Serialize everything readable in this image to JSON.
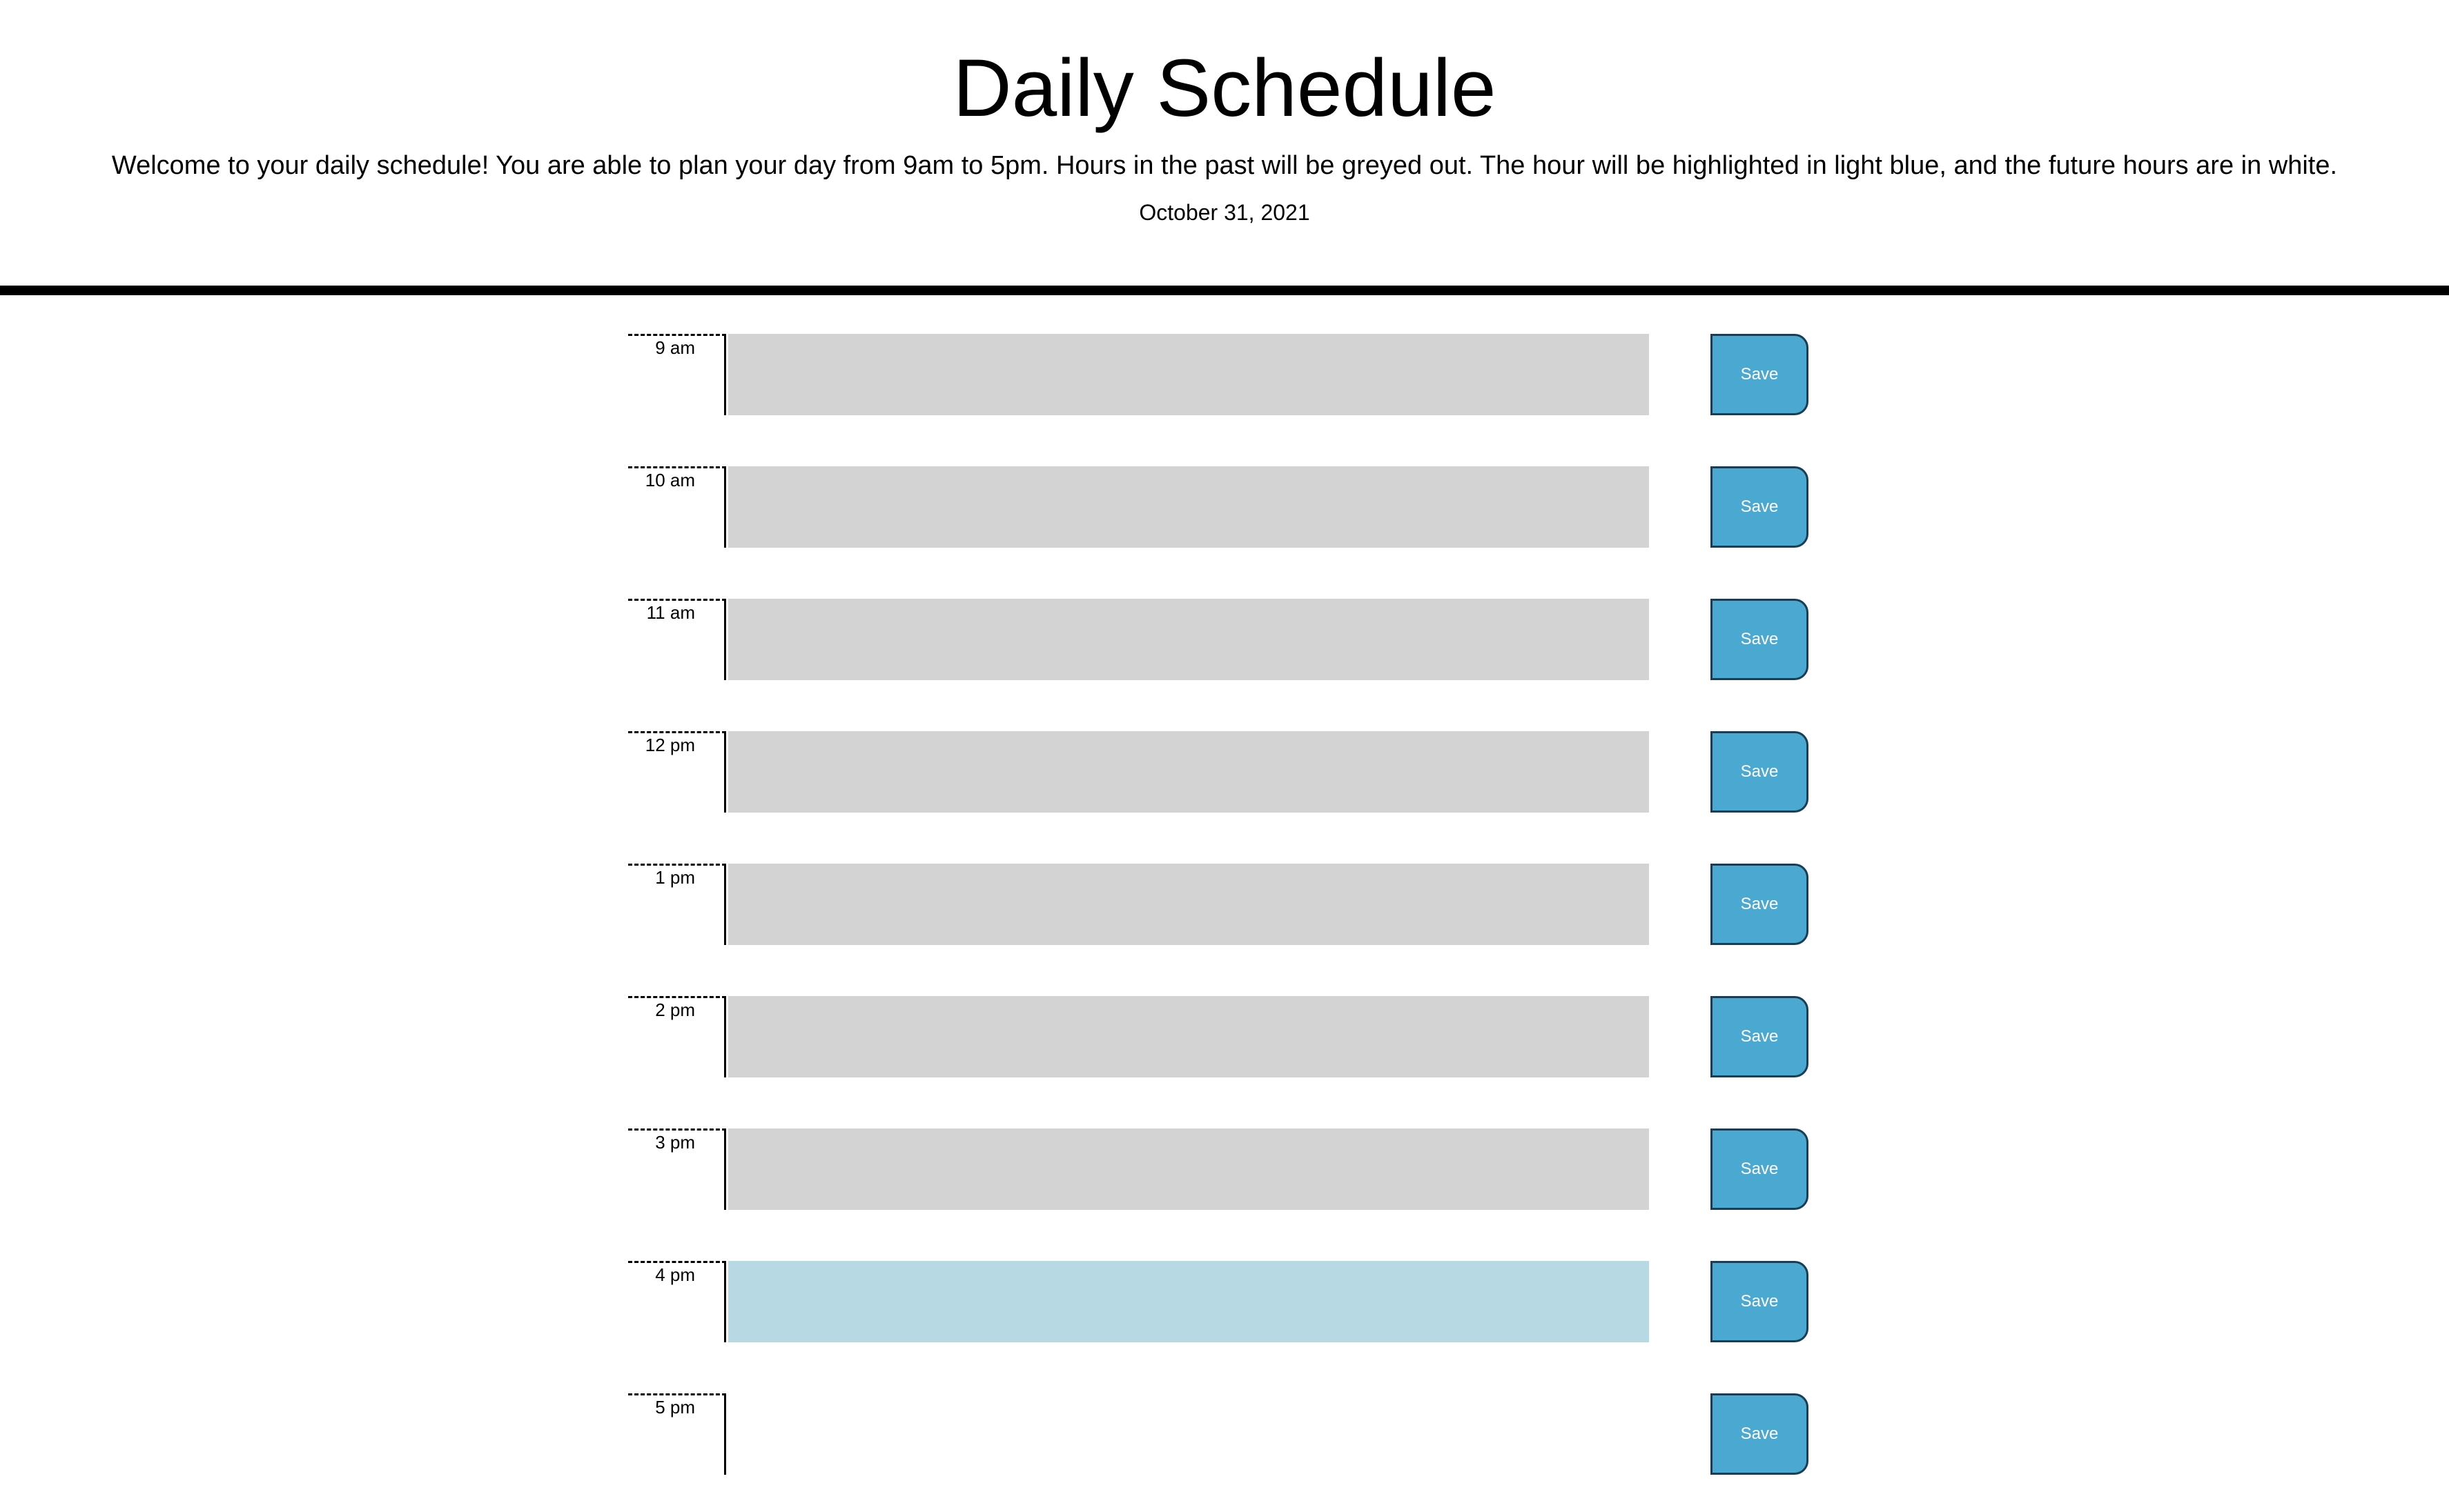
{
  "header": {
    "title": "Daily Schedule",
    "lead": "Welcome to your daily schedule! You are able to plan your day from 9am to 5pm. Hours in the past will be greyed out. The hour will be highlighted in light blue, and the future hours are in white.",
    "current_day": "October 31, 2021"
  },
  "colors": {
    "past": "#d3d3d3",
    "present": "#b6d9e4",
    "future": "#ffffff",
    "save_button": "#4aa8d1"
  },
  "time_blocks": [
    {
      "hour": "9 am",
      "state": "past",
      "text": "",
      "save_label": "Save"
    },
    {
      "hour": "10 am",
      "state": "past",
      "text": "",
      "save_label": "Save"
    },
    {
      "hour": "11 am",
      "state": "past",
      "text": "",
      "save_label": "Save"
    },
    {
      "hour": "12 pm",
      "state": "past",
      "text": "",
      "save_label": "Save"
    },
    {
      "hour": "1 pm",
      "state": "past",
      "text": "",
      "save_label": "Save"
    },
    {
      "hour": "2 pm",
      "state": "past",
      "text": "",
      "save_label": "Save"
    },
    {
      "hour": "3 pm",
      "state": "past",
      "text": "",
      "save_label": "Save"
    },
    {
      "hour": "4 pm",
      "state": "present",
      "text": "",
      "save_label": "Save"
    },
    {
      "hour": "5 pm",
      "state": "future",
      "text": "",
      "save_label": "Save"
    }
  ]
}
